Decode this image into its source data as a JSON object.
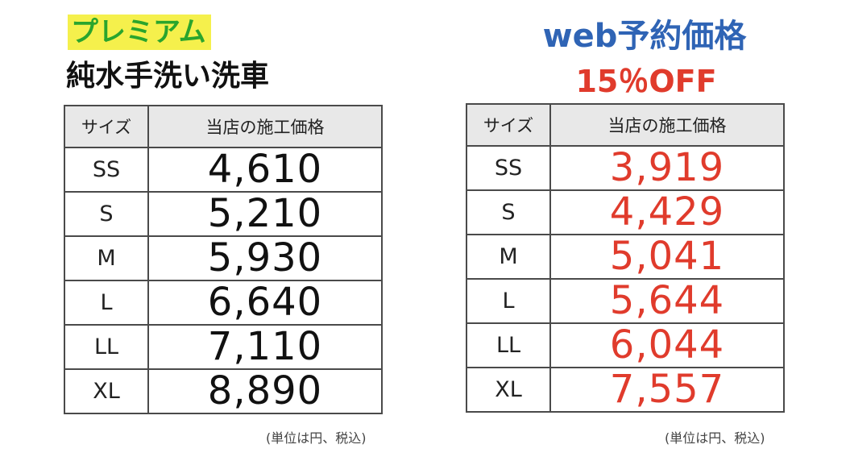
{
  "premium": {
    "badge": "プレミアム",
    "subtitle": "純水手洗い洗車",
    "header_size": "サイズ",
    "header_price": "当店の施工価格",
    "rows": [
      {
        "size": "SS",
        "price": "4,610"
      },
      {
        "size": "S",
        "price": "5,210"
      },
      {
        "size": "M",
        "price": "5,930"
      },
      {
        "size": "L",
        "price": "6,640"
      },
      {
        "size": "LL",
        "price": "7,110"
      },
      {
        "size": "XL",
        "price": "8,890"
      }
    ],
    "note": "(単位は円、税込)"
  },
  "web": {
    "title": "web予約価格",
    "discount": "15％OFF",
    "header_size": "サイズ",
    "header_price": "当店の施工価格",
    "rows": [
      {
        "size": "SS",
        "price": "3,919"
      },
      {
        "size": "S",
        "price": "4,429"
      },
      {
        "size": "M",
        "price": "5,041"
      },
      {
        "size": "L",
        "price": "5,644"
      },
      {
        "size": "LL",
        "price": "6,044"
      },
      {
        "size": "XL",
        "price": "7,557"
      }
    ],
    "note": "(単位は円、税込)"
  },
  "colors": {
    "badge_bg": "#f5f04c",
    "badge_text": "#2aa52d",
    "web_title": "#2f64b5",
    "discount": "#e03b2c"
  }
}
